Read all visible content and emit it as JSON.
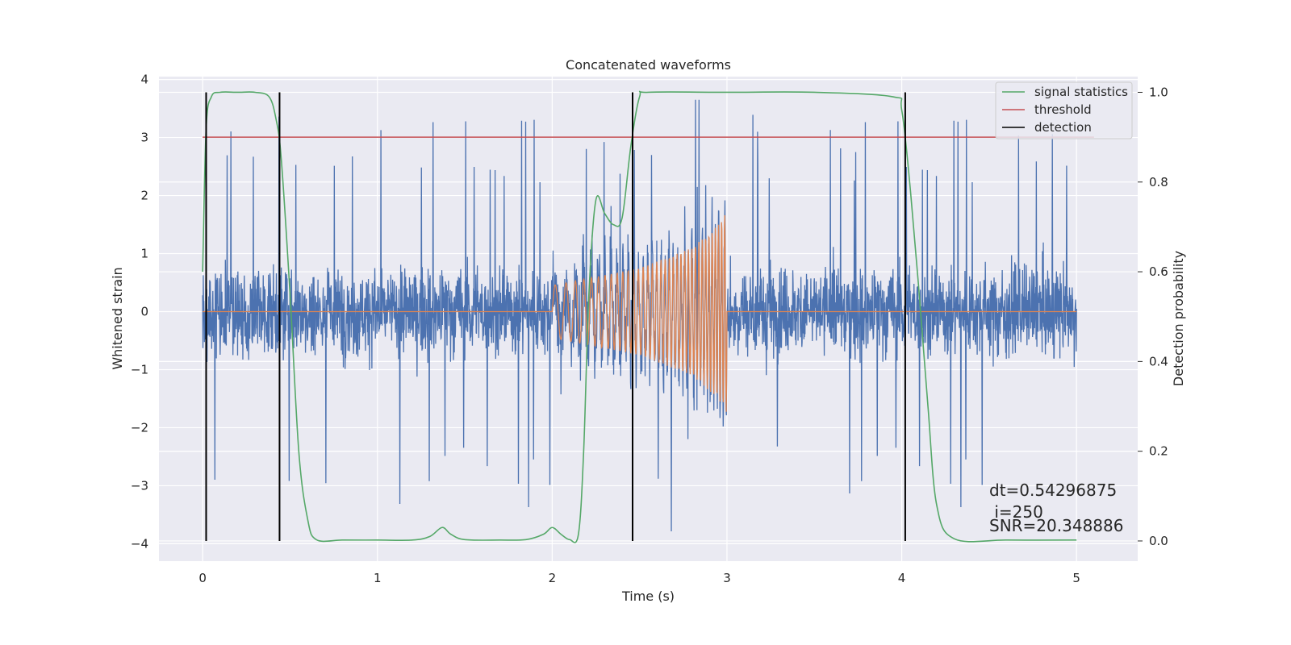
{
  "chart_data": {
    "type": "line",
    "title": "Concatenated waveforms",
    "xlabel": "Time (s)",
    "ylabel": "Whitened strain",
    "ylabel_right": "Detection probability",
    "xlim": [
      -0.25,
      5.35
    ],
    "ylim": [
      -4.3,
      4.05
    ],
    "ylim_right": [
      -0.045,
      1.035
    ],
    "xticks": [
      "0",
      "1",
      "2",
      "3",
      "4",
      "5"
    ],
    "yticks": [
      "4",
      "3",
      "2",
      "1",
      "0",
      "−1",
      "−2",
      "−3",
      "−4"
    ],
    "yticks_right": [
      "1.0",
      "0.8",
      "0.6",
      "0.4",
      "0.2",
      "0.0"
    ],
    "grid": true,
    "legend_placement": "top-right",
    "legend": [
      "signal statistics",
      "threshold",
      "detection"
    ],
    "colors": {
      "strain": "#4c72b0",
      "injection": "#dd8452",
      "signal_statistics": "#55a868",
      "threshold": "#c44e52",
      "detection": "#000000",
      "axes_bg": "#eaeaf2",
      "grid": "#ffffff"
    },
    "series": [
      {
        "name": "signal statistics",
        "axis": "right",
        "x": [
          0.0,
          0.02,
          0.05,
          0.1,
          0.2,
          0.3,
          0.38,
          0.42,
          0.45,
          0.5,
          0.55,
          0.6,
          0.65,
          0.8,
          1.0,
          1.2,
          1.3,
          1.37,
          1.42,
          1.5,
          1.7,
          1.85,
          1.95,
          2.0,
          2.05,
          2.1,
          2.15,
          2.18,
          2.21,
          2.25,
          2.3,
          2.35,
          2.4,
          2.45,
          2.5,
          2.55,
          3.0,
          3.5,
          3.95,
          4.0,
          4.05,
          4.1,
          4.15,
          4.2,
          4.3,
          4.6,
          5.0
        ],
        "y": [
          0.6,
          0.92,
          0.99,
          1.0,
          1.0,
          1.0,
          0.99,
          0.94,
          0.85,
          0.55,
          0.2,
          0.05,
          0.003,
          0.002,
          0.002,
          0.002,
          0.01,
          0.03,
          0.015,
          0.003,
          0.002,
          0.003,
          0.015,
          0.03,
          0.015,
          0.003,
          0.015,
          0.2,
          0.55,
          0.76,
          0.73,
          0.705,
          0.72,
          0.88,
          0.99,
          1.0,
          1.0,
          1.0,
          0.99,
          0.96,
          0.78,
          0.55,
          0.3,
          0.08,
          0.005,
          0.002,
          0.002
        ]
      },
      {
        "name": "threshold",
        "axis": "right",
        "x": [
          0.0,
          5.1
        ],
        "y": [
          0.9,
          0.9
        ]
      },
      {
        "name": "detection",
        "axis": "right",
        "x": [
          0.02,
          0.44,
          2.46,
          4.02
        ],
        "y_range": [
          0.0,
          1.0
        ]
      },
      {
        "name": "",
        "axis": "left",
        "role": "noise",
        "x_range": [
          0.0,
          5.0
        ],
        "y_typical_range": [
          -2.0,
          2.0
        ],
        "y_extremes": [
          -3.9,
          3.65
        ]
      },
      {
        "name": "",
        "axis": "left",
        "role": "chirp",
        "x": [
          0.0,
          2.0,
          2.0,
          2.5,
          2.8,
          2.95,
          3.0,
          3.0,
          5.0
        ],
        "y_envelope": [
          0.0,
          0.0,
          0.45,
          0.75,
          1.1,
          1.5,
          1.75,
          0.0,
          0.0
        ]
      }
    ],
    "annotation": {
      "line1": "dt=0.54296875",
      "line2": " i=250",
      "line3": "SNR=20.348886"
    }
  }
}
